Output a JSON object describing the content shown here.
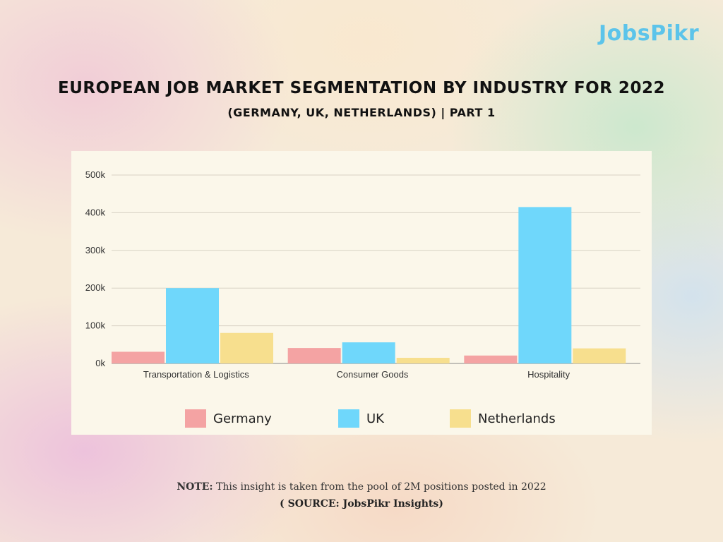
{
  "brand": {
    "logo_text": "JobsPikr"
  },
  "header": {
    "title": "EUROPEAN JOB MARKET SEGMENTATION BY INDUSTRY FOR 2022",
    "subtitle": "(GERMANY, UK, NETHERLANDS) | PART 1"
  },
  "footer": {
    "note_label": "NOTE:",
    "note_text": " This insight is taken from the pool of 2M positions posted in 2022",
    "source": "( SOURCE: JobsPikr Insights)"
  },
  "colors": {
    "germany": "#f4a3a3",
    "uk": "#6fd7fb",
    "netherlands": "#f7df8e",
    "logo": "#5cc4ea",
    "panel": "#fbf7ea",
    "grid": "#d8d2c4"
  },
  "chart_data": {
    "type": "bar",
    "categories": [
      "Transportation & Logistics",
      "Consumer Goods",
      "Hospitality"
    ],
    "series": [
      {
        "name": "Germany",
        "values": [
          31000,
          41000,
          21000
        ]
      },
      {
        "name": "UK",
        "values": [
          200000,
          56000,
          415000
        ]
      },
      {
        "name": "Netherlands",
        "values": [
          81000,
          15000,
          40000
        ]
      }
    ],
    "ylim": [
      0,
      500000
    ],
    "yticks": [
      0,
      100000,
      200000,
      300000,
      400000,
      500000
    ],
    "ytick_labels": [
      "0k",
      "100k",
      "200k",
      "300k",
      "400k",
      "500k"
    ],
    "grid": true,
    "legend": "bottom"
  }
}
